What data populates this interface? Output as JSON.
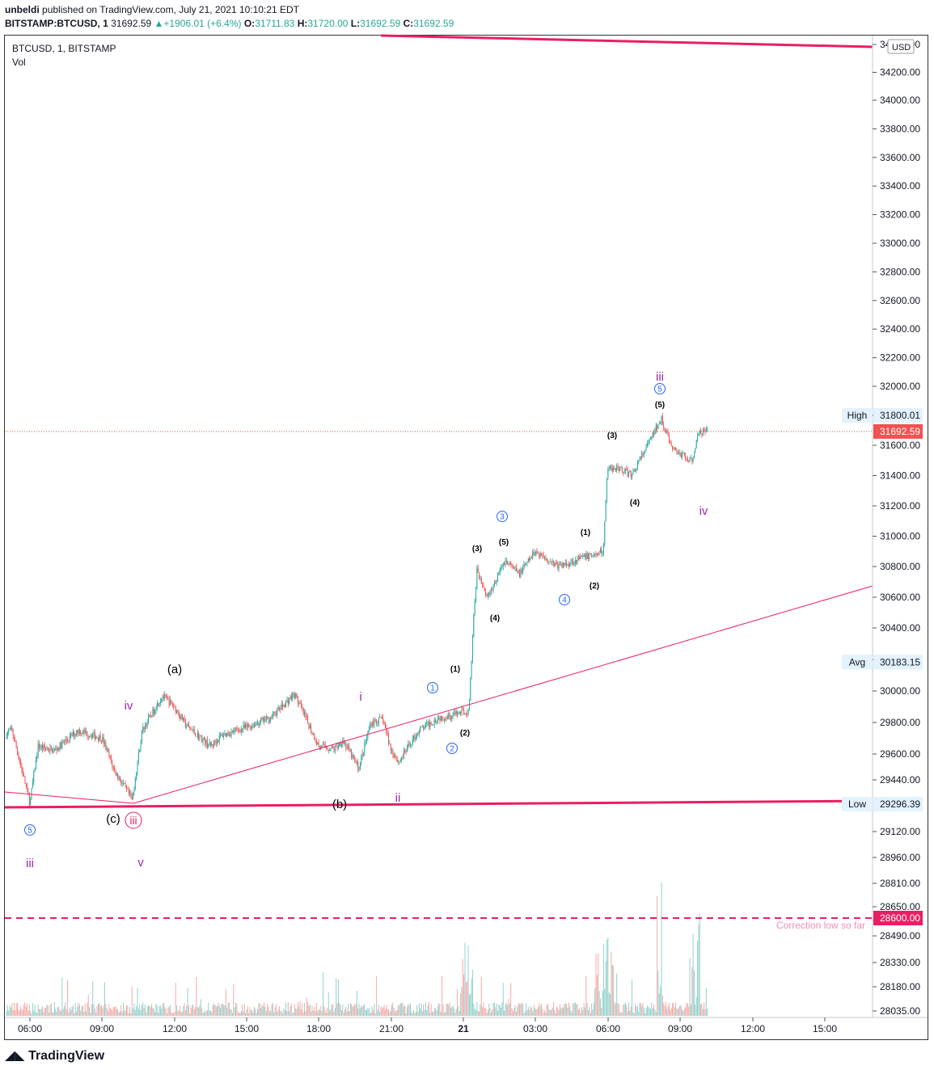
{
  "header": {
    "user": "unbeldi",
    "published_text": "published on TradingView.com, July 21, 2021 10:10:21 EDT",
    "symbol": "BITSTAMP:BTCUSD, 1",
    "last": "31692.59",
    "change": "+1906.01 (+6.4%)",
    "o_label": "O:",
    "o_value": "31711.83",
    "h_label": "H:",
    "h_value": "31720.00",
    "l_label": "L:",
    "l_value": "31692.59",
    "c_label": "C:",
    "c_value": "31692.59"
  },
  "legend": {
    "title": "BTCUSD, 1, BITSTAMP",
    "vol": "Vol"
  },
  "currency": "USD",
  "footer_logo": "TradingView",
  "colors": {
    "up": "#26a69a",
    "down": "#ef5350",
    "trend": "#e91e63",
    "wave_purple": "#9c27b0",
    "wave_blue": "#2962ff",
    "axis_text": "#131722"
  },
  "chart_data": {
    "type": "candlestick",
    "symbol": "BTCUSD",
    "exchange": "BITSTAMP",
    "interval": "1",
    "ylim": [
      28035,
      34300
    ],
    "yticks": [
      28035,
      28180,
      28330,
      28490,
      28650,
      28810,
      28960,
      29120,
      29296.39,
      29440,
      29600,
      29800,
      30000,
      30200,
      30400,
      30600,
      30800,
      31000,
      31200,
      31400,
      31600,
      31800,
      32000,
      32200,
      32400,
      32600,
      32800,
      33000,
      33200,
      33400,
      33600,
      33800,
      34000,
      34200,
      34400
    ],
    "ytick_labels": [
      "28035.00",
      "28180.00",
      "28330.00",
      "28490.00",
      "28650.00",
      "28810.00",
      "28960.00",
      "29120.00",
      "29296.39",
      "29440.00",
      "29600.00",
      "29800.00",
      "30000.00",
      "30200.00",
      "30400.00",
      "30600.00",
      "30800.00",
      "31000.00",
      "31200.00",
      "31400.00",
      "31600.00",
      "31800.00",
      "32000.00",
      "32200.00",
      "32400.00",
      "32600.00",
      "32800.00",
      "33000.00",
      "33200.00",
      "33400.00",
      "33600.00",
      "33800.00",
      "34000.00",
      "34200.00",
      "34400.00"
    ],
    "xticks": [
      "06:00",
      "09:00",
      "12:00",
      "15:00",
      "18:00",
      "21:00",
      "21",
      "03:00",
      "06:00",
      "09:00",
      "12:00",
      "15:00"
    ],
    "price_path": [
      [
        "04:30",
        29700
      ],
      [
        "05:15",
        29750
      ],
      [
        "06:00",
        29300
      ],
      [
        "06:20",
        29650
      ],
      [
        "07:00",
        29620
      ],
      [
        "08:00",
        29750
      ],
      [
        "09:00",
        29700
      ],
      [
        "09:30",
        29500
      ],
      [
        "10:15",
        29320
      ],
      [
        "10:40",
        29750
      ],
      [
        "11:30",
        29970
      ],
      [
        "12:00",
        29900
      ],
      [
        "12:30",
        29780
      ],
      [
        "13:30",
        29650
      ],
      [
        "14:00",
        29720
      ],
      [
        "15:00",
        29770
      ],
      [
        "16:00",
        29830
      ],
      [
        "17:00",
        29980
      ],
      [
        "18:00",
        29650
      ],
      [
        "18:40",
        29630
      ],
      [
        "19:00",
        29690
      ],
      [
        "19:40",
        29510
      ],
      [
        "20:10",
        29800
      ],
      [
        "20:40",
        29820
      ],
      [
        "21:00",
        29630
      ],
      [
        "21:20",
        29550
      ],
      [
        "22:10",
        29750
      ],
      [
        "23:00",
        29830
      ],
      [
        "23:40",
        29850
      ],
      [
        "00:15",
        29880
      ],
      [
        "00:25",
        30400
      ],
      [
        "00:35",
        30780
      ],
      [
        "01:00",
        30600
      ],
      [
        "01:20",
        30700
      ],
      [
        "01:45",
        30840
      ],
      [
        "02:20",
        30750
      ],
      [
        "03:00",
        30900
      ],
      [
        "04:00",
        30800
      ],
      [
        "05:00",
        30860
      ],
      [
        "05:50",
        30900
      ],
      [
        "06:00",
        31450
      ],
      [
        "06:30",
        31450
      ],
      [
        "07:00",
        31400
      ],
      [
        "07:40",
        31600
      ],
      [
        "08:15",
        31780
      ],
      [
        "08:40",
        31580
      ],
      [
        "09:30",
        31500
      ],
      [
        "09:50",
        31690
      ]
    ],
    "high": {
      "label": "High",
      "value": "31800.01"
    },
    "low": {
      "label": "Low",
      "value": "29296.39"
    },
    "avg": {
      "label": "Avg",
      "value": "30183.15"
    },
    "last_price": "31692.59",
    "correction_level": {
      "value": "28600.00",
      "label": "Correction low so far"
    },
    "annotations": [
      {
        "text": "(a)",
        "color": "black"
      },
      {
        "text": "(b)",
        "color": "black"
      },
      {
        "text": "(c)",
        "color": "black"
      },
      {
        "text": "iii",
        "color": "purple"
      },
      {
        "text": "v",
        "color": "purple"
      },
      {
        "text": "iv",
        "color": "purple"
      },
      {
        "text": "i",
        "color": "purple"
      },
      {
        "text": "ii",
        "color": "purple"
      },
      {
        "text": "iii",
        "color": "purple"
      },
      {
        "text": "iv",
        "color": "purple"
      },
      {
        "text": "5",
        "color": "blue"
      },
      {
        "text": "1",
        "color": "blue"
      },
      {
        "text": "2",
        "color": "blue"
      },
      {
        "text": "3",
        "color": "blue"
      },
      {
        "text": "4",
        "color": "blue"
      },
      {
        "text": "5",
        "color": "blue"
      },
      {
        "text": "iii",
        "color": "pink"
      },
      {
        "text": "(1)",
        "color": "black"
      },
      {
        "text": "(2)",
        "color": "black"
      },
      {
        "text": "(3)",
        "color": "black"
      },
      {
        "text": "(4)",
        "color": "black"
      },
      {
        "text": "(5)",
        "color": "black"
      },
      {
        "text": "(1)",
        "color": "black"
      },
      {
        "text": "(2)",
        "color": "black"
      },
      {
        "text": "(3)",
        "color": "black"
      },
      {
        "text": "(4)",
        "color": "black"
      },
      {
        "text": "(5)",
        "color": "black"
      }
    ]
  }
}
